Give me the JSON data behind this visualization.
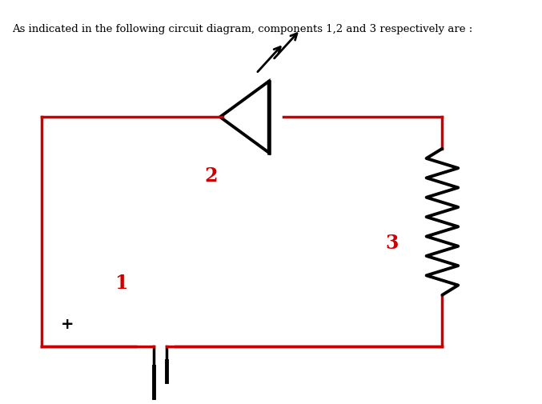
{
  "title_text": "As indicated in the following circuit diagram, components 1,2 and 3 respectively are :",
  "title_fontsize": 9.5,
  "title_color": "#000000",
  "circuit_color": "#cc0000",
  "wire_color": "#000000",
  "label_color": "#cc0000",
  "label1": "1",
  "label2": "2",
  "label3": "3",
  "fig_width": 6.77,
  "fig_height": 5.05,
  "dpi": 100
}
